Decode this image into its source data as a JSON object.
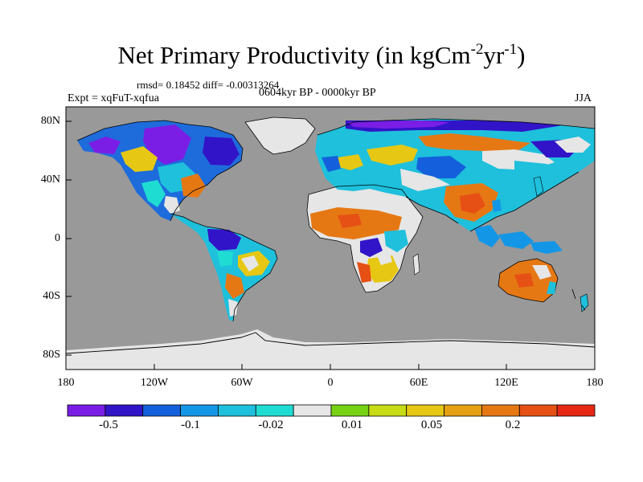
{
  "title": {
    "main": "Net Primary Productivity (in kgCm",
    "sup1": "-2",
    "mid": "yr",
    "sup2": "-1",
    "end": ")"
  },
  "stats": "rmsd= 0.18452 diff= -0.00313264",
  "experiment": "Expt = xqFuT-xqfua",
  "period": "0604kyr BP - 0000kyr BP",
  "season": "JJA",
  "axes": {
    "y_ticks": [
      "80N",
      "40N",
      "0",
      "40S",
      "80S"
    ],
    "x_ticks": [
      "180",
      "120W",
      "60W",
      "0",
      "60E",
      "120E",
      "180"
    ]
  },
  "colorbar": {
    "colors": [
      "#7a1ee6",
      "#3214c8",
      "#1460dc",
      "#1496e6",
      "#1ec0dc",
      "#1edcd2",
      "#e6e6e6",
      "#78d214",
      "#c8dc14",
      "#e6c814",
      "#e6a014",
      "#e67814",
      "#e65014",
      "#e62814"
    ],
    "labels": [
      "-0.5",
      "-0.1",
      "-0.02",
      "0.01",
      "0.05",
      "0.2"
    ]
  },
  "colors": {
    "ocean": "#999999",
    "no_data": "#e6e6e6"
  }
}
